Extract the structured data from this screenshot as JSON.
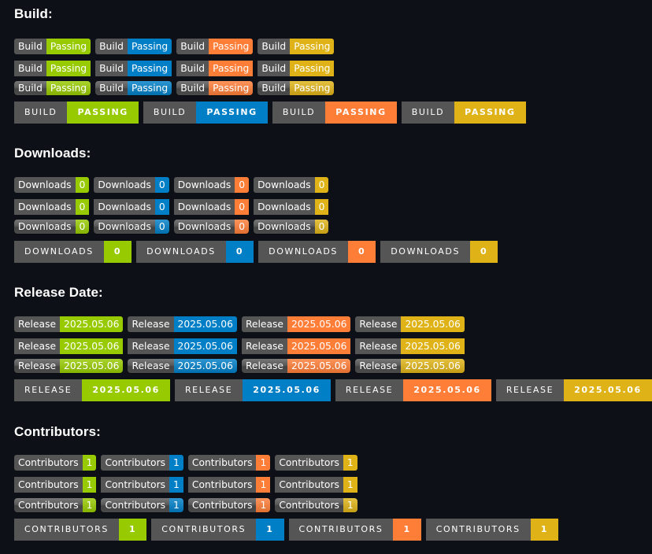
{
  "colors": {
    "label": "#555555",
    "green": "#97ca00",
    "blue": "#007ec6",
    "orange": "#fe7d37",
    "yellow": "#dfb317"
  },
  "sections": [
    {
      "title": "Build:",
      "label": "Build",
      "value": "Passing",
      "ftb_label": "BUILD",
      "ftb_value": "PASSING"
    },
    {
      "title": "Downloads:",
      "label": "Downloads",
      "value": "0",
      "ftb_label": "DOWNLOADS",
      "ftb_value": "0"
    },
    {
      "title": "Release Date:",
      "label": "Release",
      "value": "2025.05.06",
      "ftb_label": "RELEASE",
      "ftb_value": "2025.05.06"
    },
    {
      "title": "Contributors:",
      "label": "Contributors",
      "value": "1",
      "ftb_label": "CONTRIBUTORS",
      "ftb_value": "1"
    }
  ],
  "badge_colors": [
    "green",
    "blue",
    "orange",
    "yellow"
  ],
  "styles": [
    "flat",
    "flat-square",
    "plastic",
    "for-the-badge"
  ]
}
